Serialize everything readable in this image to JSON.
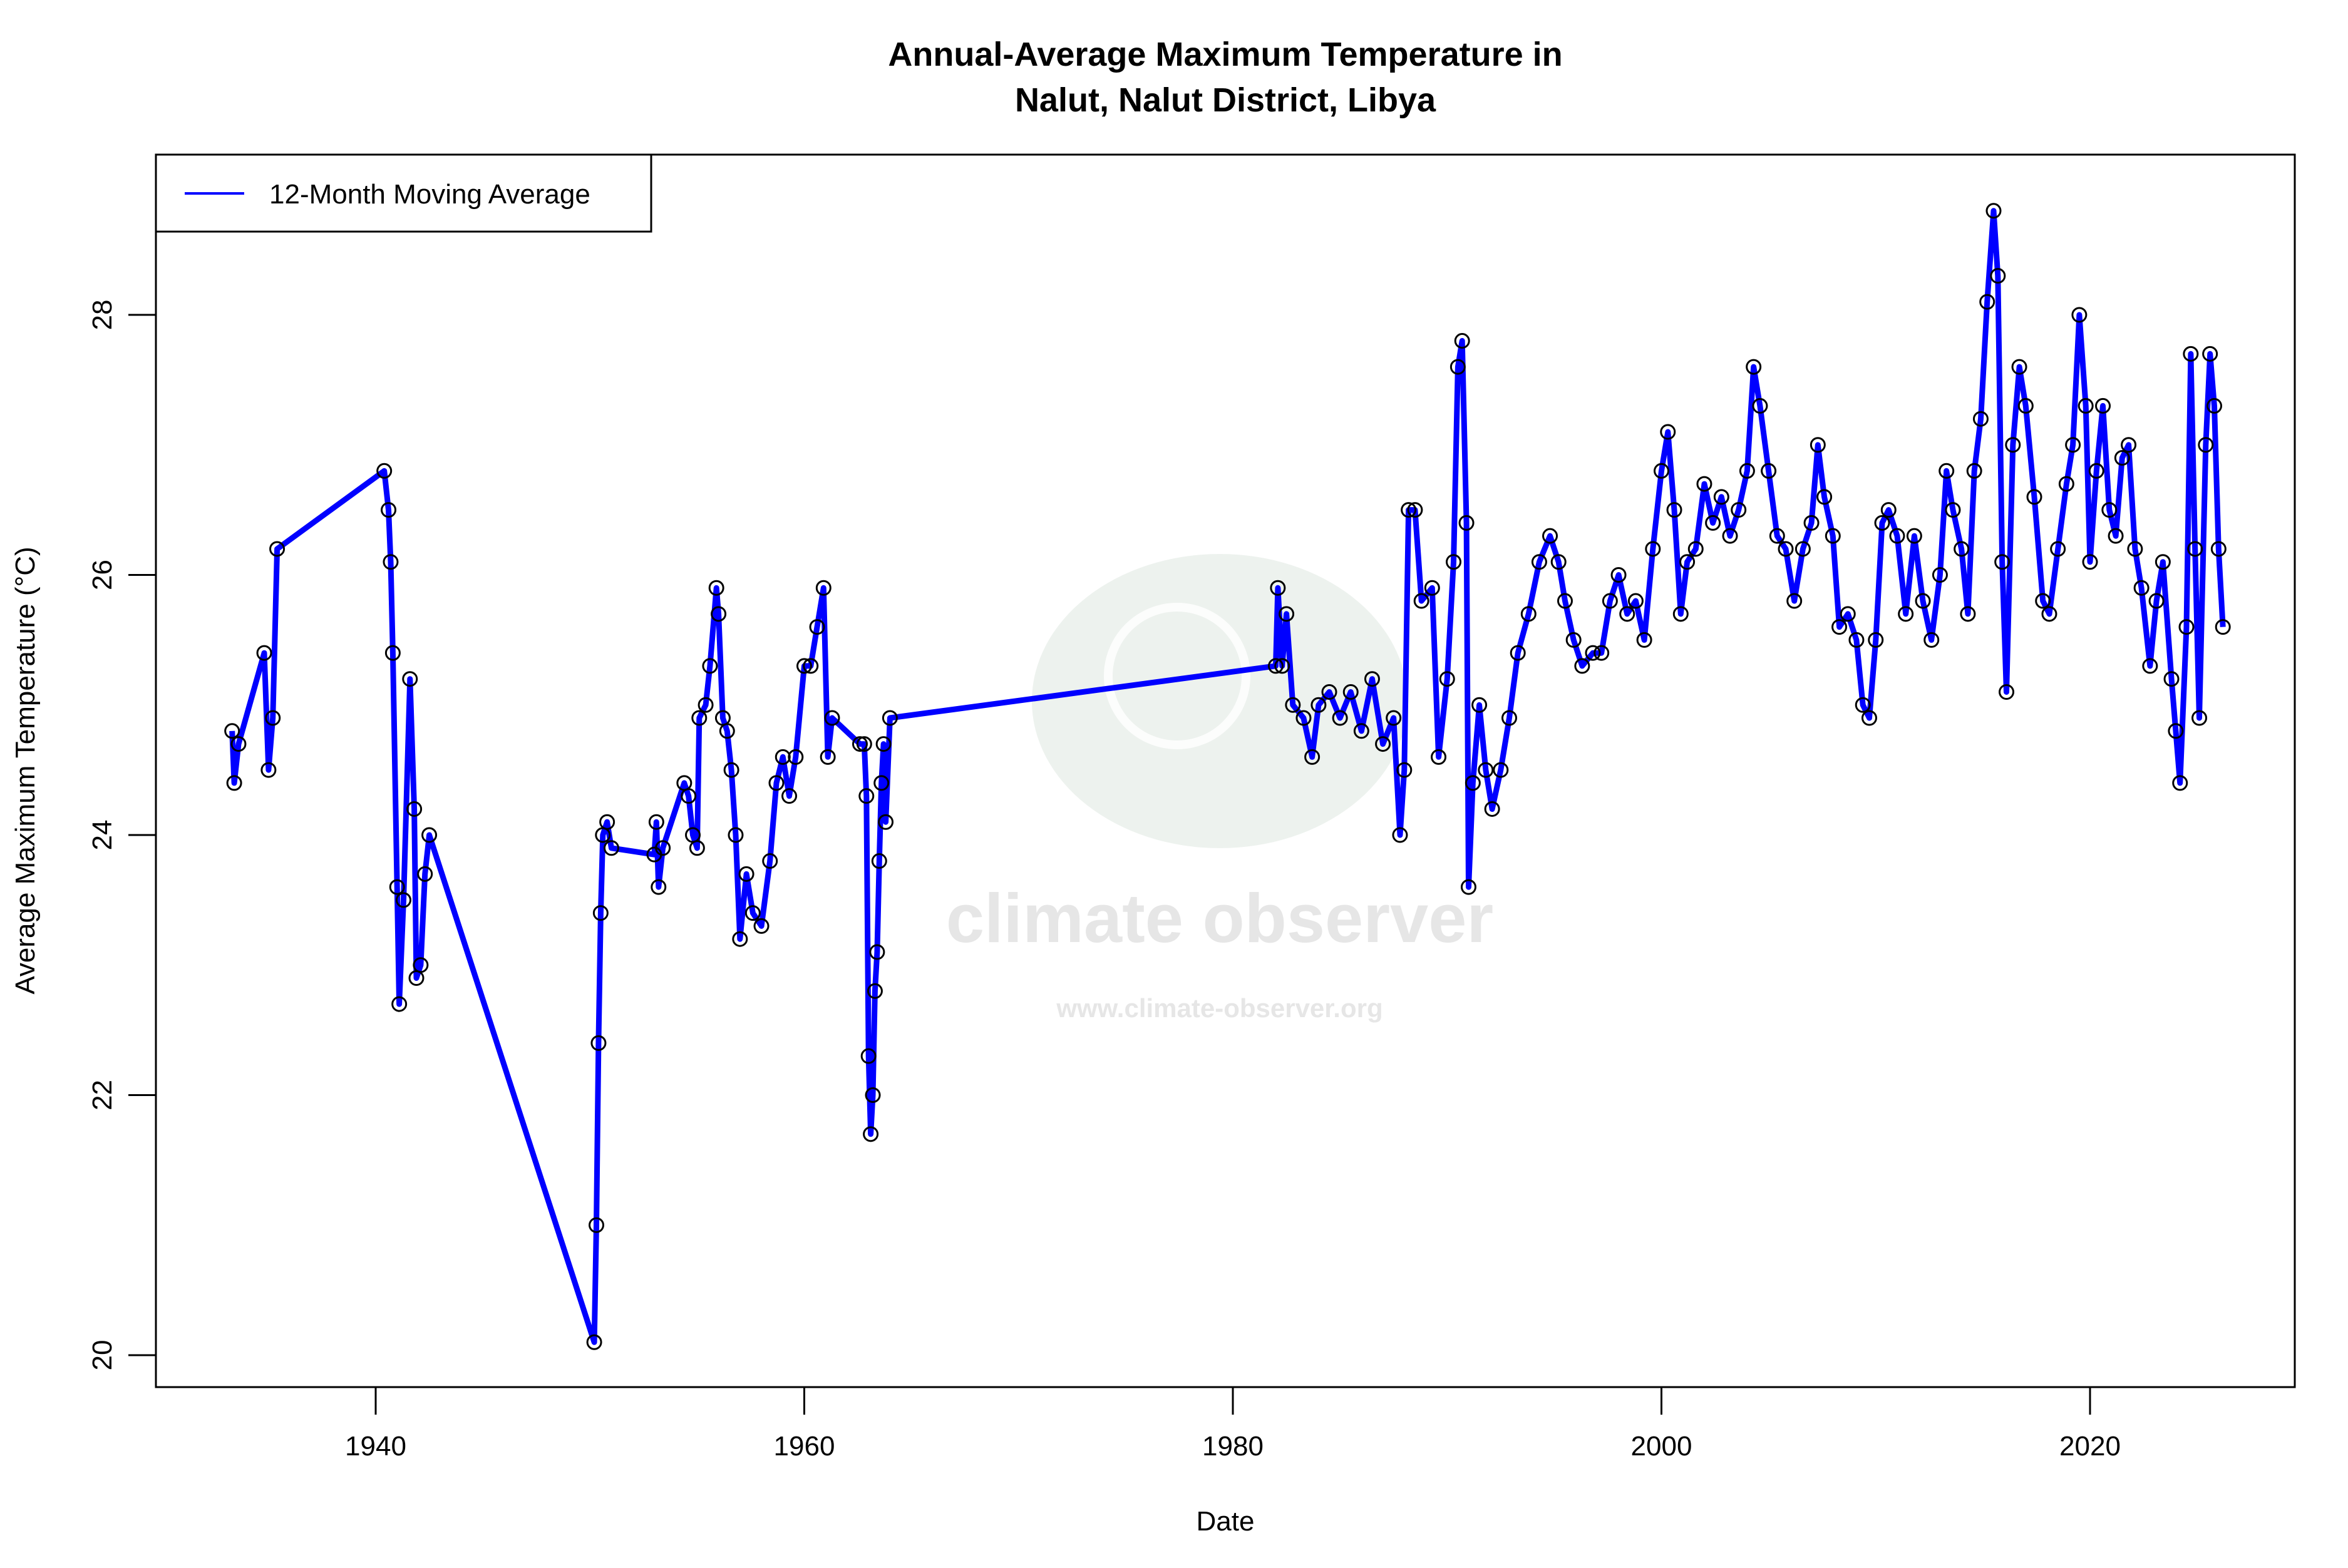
{
  "chart_data": {
    "type": "line",
    "title": "Annual-Average Maximum Temperature in",
    "subtitle": "Nalut, Nalut District, Libya",
    "xlabel": "Date",
    "ylabel": "Average Maximum Temperature (°C)",
    "xlim": [
      1930,
      2030
    ],
    "ylim": [
      19.75,
      29.5
    ],
    "x_ticks": [
      1940,
      1960,
      1980,
      2000,
      2020
    ],
    "y_ticks": [
      20,
      22,
      24,
      26,
      28
    ],
    "grid": false,
    "legend": {
      "position": "top-left",
      "entries": [
        "12-Month Moving Average"
      ]
    },
    "watermark": {
      "name": "climate observer",
      "url": "www.climate-observer.org"
    },
    "series": [
      {
        "name": "12-Month Moving Average",
        "color": "#0000ff",
        "markers": "open circles",
        "points": [
          [
            1933.3,
            24.8
          ],
          [
            1933.4,
            24.4
          ],
          [
            1933.6,
            24.7
          ],
          [
            1934.8,
            25.4
          ],
          [
            1935.0,
            24.5
          ],
          [
            1935.2,
            24.9
          ],
          [
            1935.4,
            26.2
          ],
          [
            1940.4,
            26.8
          ],
          [
            1940.6,
            26.5
          ],
          [
            1940.7,
            26.1
          ],
          [
            1940.8,
            25.4
          ],
          [
            1941.0,
            23.6
          ],
          [
            1941.1,
            22.7
          ],
          [
            1941.3,
            23.5
          ],
          [
            1941.6,
            25.2
          ],
          [
            1941.8,
            24.2
          ],
          [
            1941.9,
            22.9
          ],
          [
            1942.1,
            23.0
          ],
          [
            1942.3,
            23.7
          ],
          [
            1942.5,
            24.0
          ],
          [
            1950.2,
            20.1
          ],
          [
            1950.3,
            21.0
          ],
          [
            1950.4,
            22.4
          ],
          [
            1950.5,
            23.4
          ],
          [
            1950.6,
            24.0
          ],
          [
            1950.8,
            24.1
          ],
          [
            1951.0,
            23.9
          ],
          [
            1953.0,
            23.85
          ],
          [
            1953.1,
            24.1
          ],
          [
            1953.2,
            23.6
          ],
          [
            1953.4,
            23.9
          ],
          [
            1954.4,
            24.4
          ],
          [
            1954.6,
            24.3
          ],
          [
            1954.8,
            24.0
          ],
          [
            1955.0,
            23.9
          ],
          [
            1955.1,
            24.9
          ],
          [
            1955.4,
            25.0
          ],
          [
            1955.6,
            25.3
          ],
          [
            1955.9,
            25.9
          ],
          [
            1956.0,
            25.7
          ],
          [
            1956.2,
            24.9
          ],
          [
            1956.4,
            24.8
          ],
          [
            1956.6,
            24.5
          ],
          [
            1956.8,
            24.0
          ],
          [
            1957.0,
            23.2
          ],
          [
            1957.3,
            23.7
          ],
          [
            1957.6,
            23.4
          ],
          [
            1958.0,
            23.3
          ],
          [
            1958.4,
            23.8
          ],
          [
            1958.7,
            24.4
          ],
          [
            1959.0,
            24.6
          ],
          [
            1959.3,
            24.3
          ],
          [
            1959.6,
            24.6
          ],
          [
            1960.0,
            25.3
          ],
          [
            1960.3,
            25.3
          ],
          [
            1960.6,
            25.6
          ],
          [
            1960.9,
            25.9
          ],
          [
            1961.1,
            24.6
          ],
          [
            1961.3,
            24.9
          ],
          [
            1962.6,
            24.7
          ],
          [
            1962.8,
            24.7
          ],
          [
            1962.9,
            24.3
          ],
          [
            1963.0,
            22.3
          ],
          [
            1963.1,
            21.7
          ],
          [
            1963.2,
            22.0
          ],
          [
            1963.3,
            22.8
          ],
          [
            1963.4,
            23.1
          ],
          [
            1963.5,
            23.8
          ],
          [
            1963.6,
            24.4
          ],
          [
            1963.7,
            24.7
          ],
          [
            1963.8,
            24.1
          ],
          [
            1964.0,
            24.9
          ],
          [
            1982.0,
            25.3
          ],
          [
            1982.1,
            25.9
          ],
          [
            1982.3,
            25.3
          ],
          [
            1982.5,
            25.7
          ],
          [
            1982.8,
            25.0
          ],
          [
            1983.3,
            24.9
          ],
          [
            1983.7,
            24.6
          ],
          [
            1984.0,
            25.0
          ],
          [
            1984.5,
            25.1
          ],
          [
            1985.0,
            24.9
          ],
          [
            1985.5,
            25.1
          ],
          [
            1986.0,
            24.8
          ],
          [
            1986.5,
            25.2
          ],
          [
            1987.0,
            24.7
          ],
          [
            1987.5,
            24.9
          ],
          [
            1987.8,
            24.0
          ],
          [
            1988.0,
            24.5
          ],
          [
            1988.2,
            26.5
          ],
          [
            1988.5,
            26.5
          ],
          [
            1988.8,
            25.8
          ],
          [
            1989.3,
            25.9
          ],
          [
            1989.6,
            24.6
          ],
          [
            1990.0,
            25.2
          ],
          [
            1990.3,
            26.1
          ],
          [
            1990.5,
            27.6
          ],
          [
            1990.7,
            27.8
          ],
          [
            1990.9,
            26.4
          ],
          [
            1991.0,
            23.6
          ],
          [
            1991.2,
            24.4
          ],
          [
            1991.5,
            25.0
          ],
          [
            1991.8,
            24.5
          ],
          [
            1992.1,
            24.2
          ],
          [
            1992.5,
            24.5
          ],
          [
            1992.9,
            24.9
          ],
          [
            1993.3,
            25.4
          ],
          [
            1993.8,
            25.7
          ],
          [
            1994.3,
            26.1
          ],
          [
            1994.8,
            26.3
          ],
          [
            1995.2,
            26.1
          ],
          [
            1995.5,
            25.8
          ],
          [
            1995.9,
            25.5
          ],
          [
            1996.3,
            25.3
          ],
          [
            1996.8,
            25.4
          ],
          [
            1997.2,
            25.4
          ],
          [
            1997.6,
            25.8
          ],
          [
            1998.0,
            26.0
          ],
          [
            1998.4,
            25.7
          ],
          [
            1998.8,
            25.8
          ],
          [
            1999.2,
            25.5
          ],
          [
            1999.6,
            26.2
          ],
          [
            2000.0,
            26.8
          ],
          [
            2000.3,
            27.1
          ],
          [
            2000.6,
            26.5
          ],
          [
            2000.9,
            25.7
          ],
          [
            2001.2,
            26.1
          ],
          [
            2001.6,
            26.2
          ],
          [
            2002.0,
            26.7
          ],
          [
            2002.4,
            26.4
          ],
          [
            2002.8,
            26.6
          ],
          [
            2003.2,
            26.3
          ],
          [
            2003.6,
            26.5
          ],
          [
            2004.0,
            26.8
          ],
          [
            2004.3,
            27.6
          ],
          [
            2004.6,
            27.3
          ],
          [
            2005.0,
            26.8
          ],
          [
            2005.4,
            26.3
          ],
          [
            2005.8,
            26.2
          ],
          [
            2006.2,
            25.8
          ],
          [
            2006.6,
            26.2
          ],
          [
            2007.0,
            26.4
          ],
          [
            2007.3,
            27.0
          ],
          [
            2007.6,
            26.6
          ],
          [
            2008.0,
            26.3
          ],
          [
            2008.3,
            25.6
          ],
          [
            2008.7,
            25.7
          ],
          [
            2009.1,
            25.5
          ],
          [
            2009.4,
            25.0
          ],
          [
            2009.7,
            24.9
          ],
          [
            2010.0,
            25.5
          ],
          [
            2010.3,
            26.4
          ],
          [
            2010.6,
            26.5
          ],
          [
            2011.0,
            26.3
          ],
          [
            2011.4,
            25.7
          ],
          [
            2011.8,
            26.3
          ],
          [
            2012.2,
            25.8
          ],
          [
            2012.6,
            25.5
          ],
          [
            2013.0,
            26.0
          ],
          [
            2013.3,
            26.8
          ],
          [
            2013.6,
            26.5
          ],
          [
            2014.0,
            26.2
          ],
          [
            2014.3,
            25.7
          ],
          [
            2014.6,
            26.8
          ],
          [
            2014.9,
            27.2
          ],
          [
            2015.2,
            28.1
          ],
          [
            2015.5,
            28.8
          ],
          [
            2015.7,
            28.3
          ],
          [
            2015.9,
            26.1
          ],
          [
            2016.1,
            25.1
          ],
          [
            2016.4,
            27.0
          ],
          [
            2016.7,
            27.6
          ],
          [
            2017.0,
            27.3
          ],
          [
            2017.4,
            26.6
          ],
          [
            2017.8,
            25.8
          ],
          [
            2018.1,
            25.7
          ],
          [
            2018.5,
            26.2
          ],
          [
            2018.9,
            26.7
          ],
          [
            2019.2,
            27.0
          ],
          [
            2019.5,
            28.0
          ],
          [
            2019.8,
            27.3
          ],
          [
            2020.0,
            26.1
          ],
          [
            2020.3,
            26.8
          ],
          [
            2020.6,
            27.3
          ],
          [
            2020.9,
            26.5
          ],
          [
            2021.2,
            26.3
          ],
          [
            2021.5,
            26.9
          ],
          [
            2021.8,
            27.0
          ],
          [
            2022.1,
            26.2
          ],
          [
            2022.4,
            25.9
          ],
          [
            2022.8,
            25.3
          ],
          [
            2023.1,
            25.8
          ],
          [
            2023.4,
            26.1
          ],
          [
            2023.8,
            25.2
          ],
          [
            2024.0,
            24.8
          ],
          [
            2024.2,
            24.4
          ],
          [
            2024.5,
            25.6
          ],
          [
            2024.7,
            27.7
          ],
          [
            2024.9,
            26.2
          ],
          [
            2025.1,
            24.9
          ],
          [
            2025.4,
            27.0
          ],
          [
            2025.6,
            27.7
          ],
          [
            2025.8,
            27.3
          ],
          [
            2026.0,
            26.2
          ],
          [
            2026.2,
            25.6
          ]
        ]
      }
    ]
  }
}
